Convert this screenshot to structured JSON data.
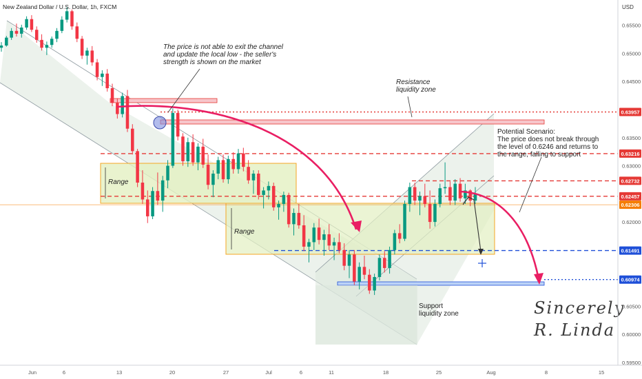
{
  "header": {
    "title": "New Zealand Dollar / U.S. Dollar, 1h, FXCM",
    "currency": "USD"
  },
  "chart_data": {
    "type": "candlestick",
    "title": "New Zealand Dollar / U.S. Dollar, 1h, FXCM",
    "ylim": [
      0.5945,
      0.6595
    ],
    "y_ticks": [
      "0.65500",
      "0.65000",
      "0.64500",
      "0.63500",
      "0.63000",
      "0.62500",
      "0.62000",
      "0.61500",
      "0.61000",
      "0.60500",
      "0.60000",
      "0.59500"
    ],
    "x_ticks": [
      "Jun",
      "6",
      "13",
      "20",
      "27",
      "Jul",
      "6",
      "11",
      "18",
      "25",
      "Aug",
      "8",
      "15"
    ],
    "price_levels": [
      {
        "label": "0.63957",
        "value": 0.63957,
        "color": "#e53935",
        "style": "dotted"
      },
      {
        "label": "0.63216",
        "value": 0.63216,
        "color": "#e53935",
        "style": "dashed"
      },
      {
        "label": "0.62732",
        "value": 0.62732,
        "color": "#e53935",
        "style": "dashed"
      },
      {
        "label": "0.62457",
        "value": 0.62457,
        "color": "#e53935",
        "style": "dashed"
      },
      {
        "label": "0.62306",
        "value": 0.62306,
        "color": "#f57c00",
        "style": "solid"
      },
      {
        "label": "0.61491",
        "value": 0.61491,
        "color": "#1e4fd8",
        "style": "dashed"
      },
      {
        "label": "0.60974",
        "value": 0.60974,
        "color": "#1e4fd8",
        "style": "dotted"
      }
    ],
    "annotations": [
      {
        "text": "The price is not able to exit the channel\nand update the local low - the seller's\nstrength is shown on the market"
      },
      {
        "text": "Resistance\nliquidity zone"
      },
      {
        "text": "Potential Scenario:\nThe price does not break through\nthe level of 0.6246 and returns to\nthe range, falling to support"
      },
      {
        "text": "Range"
      },
      {
        "text": "Range"
      },
      {
        "text": "Support\nliquidity zone"
      }
    ],
    "signature": "Sincerely R. Linda",
    "colors": {
      "up": "#089981",
      "down": "#f23645",
      "curve": "#e91e63",
      "range_fill": "#e3f0c2",
      "range_border": "#f5a623"
    },
    "series": [
      {
        "values": [
          [
            0.651,
            0.652,
            0.6503,
            0.6514
          ],
          [
            0.6514,
            0.6531,
            0.6512,
            0.6528
          ],
          [
            0.6528,
            0.6545,
            0.6524,
            0.654
          ],
          [
            0.654,
            0.6553,
            0.653,
            0.6535
          ],
          [
            0.6535,
            0.6551,
            0.6528,
            0.6546
          ],
          [
            0.6546,
            0.6566,
            0.6542,
            0.6561
          ],
          [
            0.6561,
            0.6568,
            0.6538,
            0.6542
          ],
          [
            0.6542,
            0.6548,
            0.6519,
            0.6524
          ],
          [
            0.6524,
            0.6534,
            0.6505,
            0.651
          ],
          [
            0.651,
            0.6521,
            0.6497,
            0.6515
          ],
          [
            0.6515,
            0.653,
            0.651,
            0.6526
          ],
          [
            0.6526,
            0.6545,
            0.652,
            0.654
          ],
          [
            0.654,
            0.6566,
            0.6536,
            0.656
          ],
          [
            0.656,
            0.6582,
            0.6555,
            0.6575
          ],
          [
            0.6575,
            0.6578,
            0.6542,
            0.6548
          ],
          [
            0.6548,
            0.6555,
            0.652,
            0.6526
          ],
          [
            0.6526,
            0.6531,
            0.649,
            0.6496
          ],
          [
            0.6496,
            0.651,
            0.648,
            0.6505
          ],
          [
            0.6505,
            0.6513,
            0.6478,
            0.6484
          ],
          [
            0.6484,
            0.649,
            0.6452,
            0.6458
          ],
          [
            0.6458,
            0.647,
            0.6442,
            0.6464
          ],
          [
            0.6464,
            0.6472,
            0.6432,
            0.6438
          ],
          [
            0.6438,
            0.6446,
            0.6406,
            0.6412
          ],
          [
            0.6412,
            0.642,
            0.6384,
            0.6392
          ],
          [
            0.6392,
            0.643,
            0.6386,
            0.6424
          ],
          [
            0.6424,
            0.6435,
            0.636,
            0.6366
          ],
          [
            0.6366,
            0.6374,
            0.632,
            0.6326
          ],
          [
            0.6326,
            0.633,
            0.6262,
            0.627
          ],
          [
            0.627,
            0.6292,
            0.6232,
            0.624
          ],
          [
            0.624,
            0.6256,
            0.6198,
            0.621
          ],
          [
            0.621,
            0.6262,
            0.6205,
            0.6255
          ],
          [
            0.6255,
            0.6288,
            0.623,
            0.6238
          ],
          [
            0.6238,
            0.6282,
            0.6218,
            0.6274
          ],
          [
            0.6274,
            0.631,
            0.626,
            0.63
          ],
          [
            0.63,
            0.6402,
            0.6296,
            0.6394
          ],
          [
            0.6394,
            0.64,
            0.6345,
            0.6352
          ],
          [
            0.6352,
            0.6358,
            0.63,
            0.6308
          ],
          [
            0.6308,
            0.635,
            0.6298,
            0.6342
          ],
          [
            0.6342,
            0.6356,
            0.63,
            0.6306
          ],
          [
            0.6306,
            0.634,
            0.6292,
            0.6334
          ],
          [
            0.6334,
            0.6348,
            0.6296,
            0.6302
          ],
          [
            0.6302,
            0.632,
            0.6258,
            0.6266
          ],
          [
            0.6266,
            0.6292,
            0.6244,
            0.6286
          ],
          [
            0.6286,
            0.6316,
            0.6276,
            0.631
          ],
          [
            0.631,
            0.632,
            0.627,
            0.6276
          ],
          [
            0.6276,
            0.6318,
            0.6268,
            0.6312
          ],
          [
            0.6312,
            0.6324,
            0.6286,
            0.6294
          ],
          [
            0.6294,
            0.633,
            0.6286,
            0.6322
          ],
          [
            0.6322,
            0.6332,
            0.629,
            0.6298
          ],
          [
            0.6298,
            0.631,
            0.6268,
            0.6274
          ],
          [
            0.6274,
            0.6292,
            0.625,
            0.6286
          ],
          [
            0.6286,
            0.6292,
            0.624,
            0.6248
          ],
          [
            0.6248,
            0.6262,
            0.6224,
            0.6256
          ],
          [
            0.6256,
            0.6272,
            0.624,
            0.6264
          ],
          [
            0.6264,
            0.627,
            0.622,
            0.6226
          ],
          [
            0.6226,
            0.6238,
            0.6204,
            0.6232
          ],
          [
            0.6232,
            0.6254,
            0.6218,
            0.6248
          ],
          [
            0.6248,
            0.6252,
            0.619,
            0.6196
          ],
          [
            0.6196,
            0.6224,
            0.6176,
            0.6216
          ],
          [
            0.6216,
            0.6232,
            0.6188,
            0.6194
          ],
          [
            0.6194,
            0.6212,
            0.6148,
            0.6156
          ],
          [
            0.6156,
            0.617,
            0.6128,
            0.6164
          ],
          [
            0.6164,
            0.6198,
            0.615,
            0.619
          ],
          [
            0.619,
            0.6206,
            0.616,
            0.6168
          ],
          [
            0.6168,
            0.6186,
            0.614,
            0.6178
          ],
          [
            0.6178,
            0.6196,
            0.615,
            0.6158
          ],
          [
            0.6158,
            0.6172,
            0.6132,
            0.6164
          ],
          [
            0.6164,
            0.618,
            0.6144,
            0.615
          ],
          [
            0.615,
            0.6162,
            0.6114,
            0.6122
          ],
          [
            0.6122,
            0.615,
            0.61,
            0.6142
          ],
          [
            0.6142,
            0.615,
            0.6088,
            0.6094
          ],
          [
            0.6094,
            0.6128,
            0.608,
            0.612
          ],
          [
            0.612,
            0.614,
            0.6098,
            0.6106
          ],
          [
            0.6106,
            0.6116,
            0.6072,
            0.6078
          ],
          [
            0.6078,
            0.6108,
            0.607,
            0.6102
          ],
          [
            0.6102,
            0.6142,
            0.6096,
            0.6136
          ],
          [
            0.6136,
            0.6148,
            0.611,
            0.6118
          ],
          [
            0.6118,
            0.6156,
            0.6108,
            0.615
          ],
          [
            0.615,
            0.6186,
            0.6142,
            0.618
          ],
          [
            0.618,
            0.6196,
            0.6162,
            0.617
          ],
          [
            0.617,
            0.6238,
            0.6166,
            0.6232
          ],
          [
            0.6232,
            0.627,
            0.6218,
            0.6262
          ],
          [
            0.6262,
            0.627,
            0.623,
            0.6238
          ],
          [
            0.6238,
            0.6254,
            0.6212,
            0.6246
          ],
          [
            0.6246,
            0.6268,
            0.6226,
            0.6232
          ],
          [
            0.6232,
            0.6256,
            0.6188,
            0.62
          ],
          [
            0.62,
            0.624,
            0.6192,
            0.6232
          ],
          [
            0.6232,
            0.6268,
            0.6226,
            0.626
          ],
          [
            0.626,
            0.6306,
            0.625,
            0.6262
          ],
          [
            0.6262,
            0.6272,
            0.623,
            0.6238
          ],
          [
            0.6238,
            0.6276,
            0.623,
            0.6268
          ],
          [
            0.6268,
            0.6278,
            0.6236,
            0.6242
          ],
          [
            0.6242,
            0.6268,
            0.6232,
            0.6256
          ],
          [
            0.6256,
            0.6258,
            0.6228,
            0.6238
          ],
          [
            0.6238,
            0.6262,
            0.6232,
            0.625
          ]
        ]
      }
    ]
  }
}
